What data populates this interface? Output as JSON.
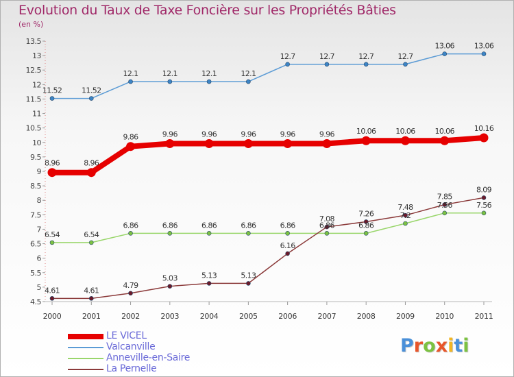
{
  "title": "Evolution du Taux de Taxe Foncière sur les Propriétés Bâties",
  "unit_label": "(en %)",
  "brand": {
    "name": "Proxiti",
    "colors": [
      "#4a90d9",
      "#e8552a",
      "#7cc242",
      "#e8552a",
      "#f2b623",
      "#4a90d9",
      "#7cc242"
    ]
  },
  "chart_data": {
    "type": "line",
    "title": "Evolution du Taux de Taxe Foncière sur les Propriétés Bâties",
    "ylabel": "(en %)",
    "xlabel": "",
    "categories": [
      "2000",
      "2001",
      "2002",
      "2003",
      "2004",
      "2005",
      "2006",
      "2007",
      "2008",
      "2009",
      "2010",
      "2011"
    ],
    "ylim": [
      4.5,
      13.5
    ],
    "yticks": [
      "4.5",
      "5",
      "5.5",
      "6",
      "6.5",
      "7",
      "7.5",
      "8",
      "8.5",
      "9",
      "9.5",
      "10",
      "10.5",
      "11",
      "11.5",
      "12",
      "12.5",
      "13",
      "13.5"
    ],
    "grid": false,
    "legend_position": "bottom-left",
    "series": [
      {
        "name": "LE VICEL",
        "color": "#e60000",
        "emphasis": true,
        "values": [
          8.96,
          8.96,
          9.86,
          9.96,
          9.96,
          9.96,
          9.96,
          9.96,
          10.06,
          10.06,
          10.06,
          10.16
        ],
        "labels": [
          "8.96",
          "8.96",
          "9.86",
          "9.96",
          "9.96",
          "9.96",
          "9.96",
          "9.96",
          "10.06",
          "10.06",
          "10.06",
          "10.16"
        ]
      },
      {
        "name": "Valcanville",
        "color": "#5b9bd5",
        "point_color": "#3d85c6",
        "values": [
          11.52,
          11.52,
          12.1,
          12.1,
          12.1,
          12.1,
          12.7,
          12.7,
          12.7,
          12.7,
          13.06,
          13.06
        ],
        "labels": [
          "11.52",
          "11.52",
          "12.1",
          "12.1",
          "12.1",
          "12.1",
          "12.7",
          "12.7",
          "12.7",
          "12.7",
          "13.06",
          "13.06"
        ]
      },
      {
        "name": "Anneville-en-Saire",
        "color": "#99d66b",
        "point_color": "#7cc242",
        "values": [
          6.54,
          6.54,
          6.86,
          6.86,
          6.86,
          6.86,
          6.86,
          6.86,
          6.86,
          7.2,
          7.56,
          7.56
        ],
        "labels": [
          "6.54",
          "6.54",
          "6.86",
          "6.86",
          "6.86",
          "6.86",
          "6.86",
          "6.86",
          "6.86",
          "7.2",
          "7.56",
          "7.56"
        ]
      },
      {
        "name": "La Pernelle",
        "color": "#8b3a3a",
        "point_color": "#6b1a2a",
        "values": [
          4.61,
          4.61,
          4.79,
          5.03,
          5.13,
          5.13,
          6.16,
          7.08,
          7.26,
          7.48,
          7.85,
          8.09
        ],
        "labels": [
          "4.61",
          "4.61",
          "4.79",
          "5.03",
          "5.13",
          "5.13",
          "6.16",
          "7.08",
          "7.26",
          "7.48",
          "7.85",
          "8.09"
        ]
      }
    ]
  }
}
